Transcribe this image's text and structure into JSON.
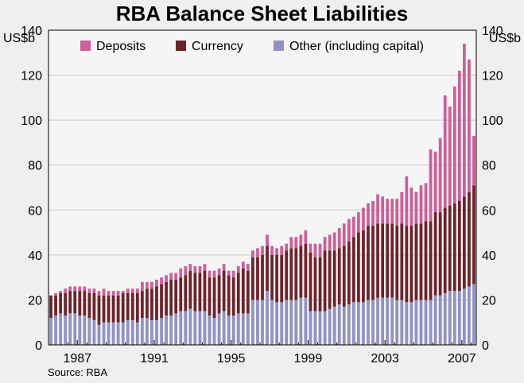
{
  "chart_data": {
    "type": "bar",
    "stacked": true,
    "title": "RBA Balance Sheet Liabilities",
    "ylabel_left": "US$b",
    "ylabel_right": "US$b",
    "source": "Source: RBA",
    "ylim": [
      0,
      140
    ],
    "yticks": [
      0,
      20,
      40,
      60,
      80,
      100,
      120,
      140
    ],
    "xtick_labels": [
      "1987",
      "1991",
      "1995",
      "1999",
      "2003",
      "2007"
    ],
    "grid": true,
    "legend_position": "top",
    "frequency": "quarterly",
    "start_period": "1986 Q1",
    "series": [
      {
        "name": "Other (including capital)",
        "color": "#8f92c2",
        "values": [
          12,
          13,
          14,
          13,
          14,
          14,
          13,
          13,
          12,
          11,
          9,
          10,
          10,
          10,
          10,
          10,
          11,
          11,
          10,
          12,
          12,
          11,
          11,
          12,
          13,
          13,
          14,
          15,
          15,
          16,
          15,
          15,
          15,
          13,
          12,
          14,
          15,
          13,
          13,
          14,
          14,
          14,
          20,
          20,
          20,
          24,
          20,
          19,
          19,
          20,
          20,
          20,
          21,
          21,
          15,
          15,
          15,
          15,
          16,
          17,
          18,
          17,
          18,
          19,
          19,
          19,
          20,
          20,
          21,
          21,
          21,
          21,
          20,
          20,
          19,
          19,
          20,
          20,
          20,
          20,
          22,
          22,
          23,
          24,
          24,
          24,
          25,
          26,
          27
        ]
      },
      {
        "name": "Currency",
        "color": "#6b2329",
        "values": [
          10,
          9,
          9,
          10,
          10,
          10,
          11,
          11,
          11,
          12,
          13,
          12,
          12,
          12,
          12,
          13,
          12,
          12,
          13,
          12,
          13,
          14,
          15,
          15,
          15,
          16,
          15,
          15,
          16,
          17,
          17,
          17,
          18,
          17,
          18,
          17,
          18,
          18,
          17,
          18,
          20,
          19,
          19,
          19,
          20,
          20,
          20,
          21,
          21,
          22,
          23,
          23,
          23,
          24,
          26,
          24,
          24,
          27,
          26,
          25,
          25,
          27,
          28,
          29,
          31,
          32,
          33,
          33,
          33,
          33,
          33,
          33,
          33,
          34,
          34,
          34,
          34,
          34,
          35,
          35,
          37,
          37,
          38,
          38,
          39,
          40,
          41,
          42,
          44
        ]
      },
      {
        "name": "Deposits",
        "color": "#cc5f9a",
        "values": [
          0,
          1,
          1,
          2,
          2,
          2,
          2,
          2,
          2,
          2,
          2,
          3,
          2,
          2,
          2,
          1,
          2,
          2,
          2,
          4,
          3,
          3,
          3,
          3,
          3,
          3,
          3,
          4,
          4,
          3,
          3,
          3,
          3,
          3,
          3,
          3,
          3,
          2,
          3,
          3,
          3,
          3,
          3,
          4,
          4,
          5,
          4,
          3,
          4,
          3,
          5,
          5,
          5,
          6,
          4,
          6,
          6,
          6,
          7,
          8,
          9,
          10,
          10,
          9,
          9,
          10,
          10,
          11,
          13,
          12,
          11,
          11,
          12,
          14,
          22,
          17,
          14,
          17,
          17,
          32,
          27,
          33,
          50,
          44,
          52,
          58,
          68,
          59,
          22
        ]
      }
    ],
    "legend": [
      "Deposits",
      "Currency",
      "Other (including capital)"
    ]
  }
}
